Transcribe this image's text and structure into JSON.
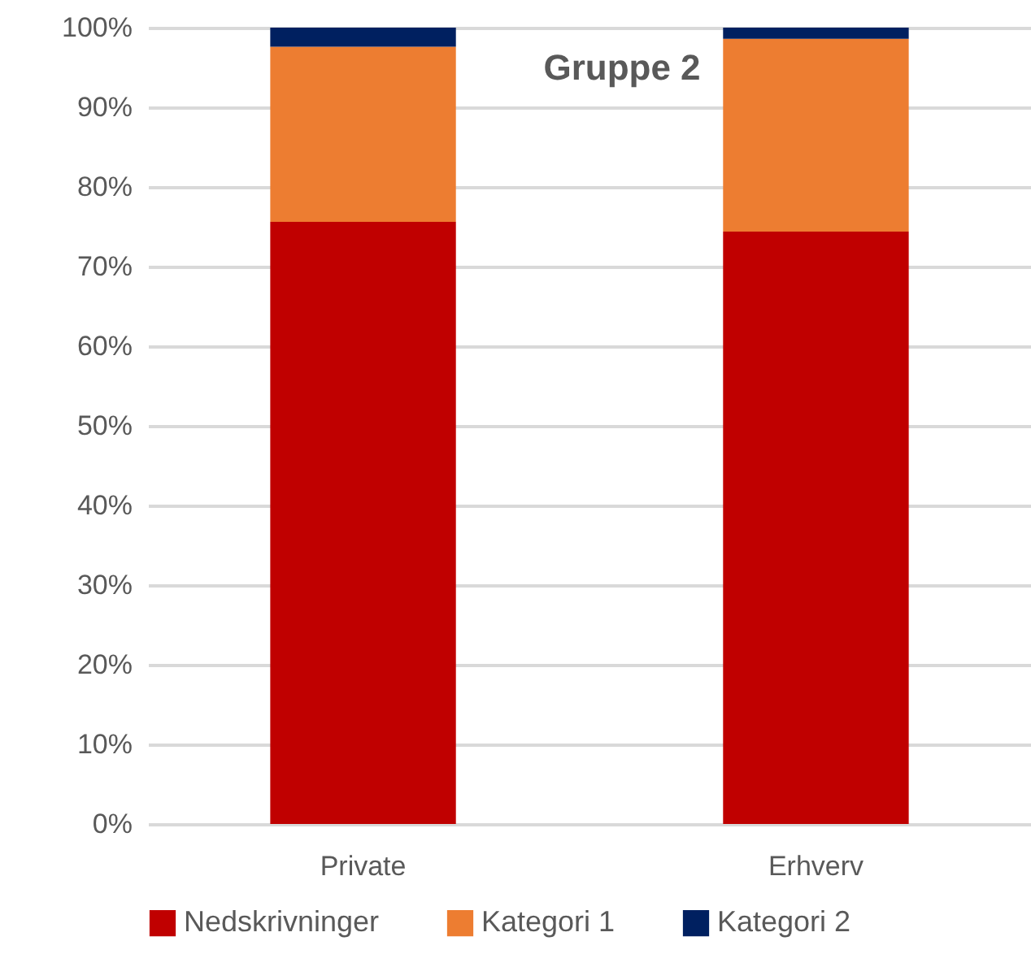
{
  "chart_data": {
    "type": "bar",
    "stacked": true,
    "title": "Gruppe 2",
    "categories": [
      "Private",
      "Erhverv"
    ],
    "series": [
      {
        "name": "Nedskrivninger",
        "color": "#c00000",
        "values": [
          75.6,
          74.4
        ]
      },
      {
        "name": "Kategori 1",
        "color": "#ed7d31",
        "values": [
          22.0,
          24.2
        ]
      },
      {
        "name": "Kategori 2",
        "color": "#002060",
        "values": [
          2.4,
          1.4
        ]
      }
    ],
    "ylim": [
      0,
      100
    ],
    "yticks": [
      {
        "value": 0,
        "label": "0%"
      },
      {
        "value": 10,
        "label": "10%"
      },
      {
        "value": 20,
        "label": "20%"
      },
      {
        "value": 30,
        "label": "30%"
      },
      {
        "value": 40,
        "label": "40%"
      },
      {
        "value": 50,
        "label": "50%"
      },
      {
        "value": 60,
        "label": "60%"
      },
      {
        "value": 70,
        "label": "70%"
      },
      {
        "value": 80,
        "label": "80%"
      },
      {
        "value": 90,
        "label": "90%"
      },
      {
        "value": 100,
        "label": "100%"
      }
    ],
    "grid": "y",
    "legend": "bottom"
  }
}
